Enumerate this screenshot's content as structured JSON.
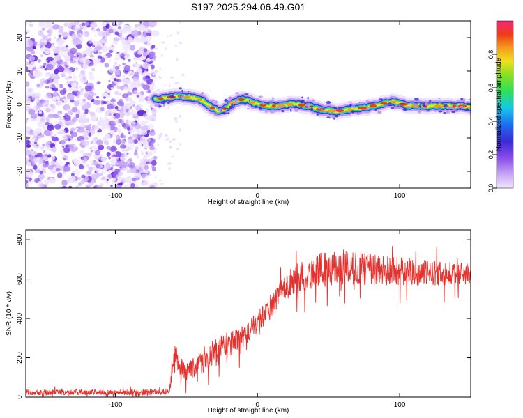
{
  "title": "S197.2025.294.06.49.G01",
  "colors": {
    "trace": "#e8302c",
    "scatter": "#7a3fe0",
    "colormap": [
      "#f0e6ff",
      "#c9a8f5",
      "#8a4de8",
      "#3b2ad6",
      "#1b4ff0",
      "#16c8e8",
      "#2ee05a",
      "#8be020",
      "#f0e020",
      "#f59a1a",
      "#f03a1a",
      "#f02a7a"
    ]
  },
  "chart_data": [
    {
      "id": "spectrogram",
      "type": "heatmap",
      "xlabel": "Height of straight line (km)",
      "ylabel": "Frequency (Hz)",
      "xlim": [
        -163,
        150
      ],
      "ylim": [
        -25,
        25
      ],
      "xticks": [
        -100,
        0,
        100
      ],
      "xtick_labels": [
        "-100",
        "0",
        "100"
      ],
      "yticks": [
        -20,
        -10,
        0,
        10,
        20
      ],
      "ytick_labels": [
        "-20",
        "-10",
        "0",
        "10",
        "20"
      ],
      "noise_region_x": [
        -163,
        -72
      ],
      "ridge": {
        "x": [
          -72,
          -65,
          -55,
          -45,
          -38,
          -32,
          -27,
          -22,
          -17,
          -12,
          -7,
          -2,
          5,
          15,
          25,
          35,
          45,
          55,
          65,
          75,
          85,
          95,
          105,
          115,
          125,
          135,
          145,
          150
        ],
        "y": [
          1.5,
          2.0,
          2.5,
          2.0,
          1.0,
          -1.0,
          -2.0,
          -1.0,
          0.5,
          1.5,
          1.2,
          0.3,
          -0.3,
          -0.5,
          0.2,
          -0.4,
          -1.5,
          -2.0,
          -1.5,
          -1.0,
          0.0,
          0.8,
          -0.2,
          -0.5,
          -0.5,
          -0.5,
          -0.5,
          -1.0
        ]
      },
      "colorbar": {
        "label": "Normalized spectral amplitude",
        "range": [
          0.0,
          1.0
        ],
        "ticks": [
          0.0,
          0.2,
          0.4,
          0.6,
          0.8
        ],
        "tick_labels": [
          "0.0",
          "0.2",
          "0.4",
          "0.6",
          "0.8"
        ]
      }
    },
    {
      "id": "snr",
      "type": "line",
      "xlabel": "Height of straight line (km)",
      "ylabel": "SNR (10 * v/v)",
      "xlim": [
        -163,
        150
      ],
      "ylim": [
        0,
        850
      ],
      "xticks": [
        -100,
        0,
        100
      ],
      "xtick_labels": [
        "-100",
        "0",
        "100"
      ],
      "yticks": [
        0,
        200,
        400,
        600,
        800
      ],
      "ytick_labels": [
        "0",
        "200",
        "400",
        "600",
        "800"
      ],
      "series": [
        {
          "name": "SNR",
          "x": [
            -163,
            -120,
            -80,
            -62,
            -58,
            -55,
            -50,
            -45,
            -40,
            -35,
            -30,
            -25,
            -20,
            -15,
            -10,
            -5,
            0,
            5,
            10,
            15,
            20,
            25,
            30,
            35,
            40,
            50,
            60,
            70,
            80,
            90,
            100,
            110,
            120,
            130,
            140,
            150
          ],
          "y": [
            25,
            25,
            25,
            28,
            230,
            160,
            130,
            150,
            170,
            190,
            230,
            260,
            260,
            290,
            310,
            340,
            380,
            420,
            470,
            520,
            560,
            590,
            610,
            620,
            640,
            650,
            660,
            650,
            650,
            640,
            640,
            635,
            630,
            630,
            625,
            630
          ],
          "amplitude": [
            15,
            15,
            15,
            15,
            60,
            50,
            45,
            55,
            55,
            55,
            60,
            60,
            65,
            60,
            60,
            60,
            55,
            55,
            60,
            60,
            70,
            75,
            80,
            85,
            90,
            90,
            90,
            85,
            85,
            80,
            75,
            70,
            65,
            60,
            60,
            60
          ]
        }
      ]
    }
  ]
}
